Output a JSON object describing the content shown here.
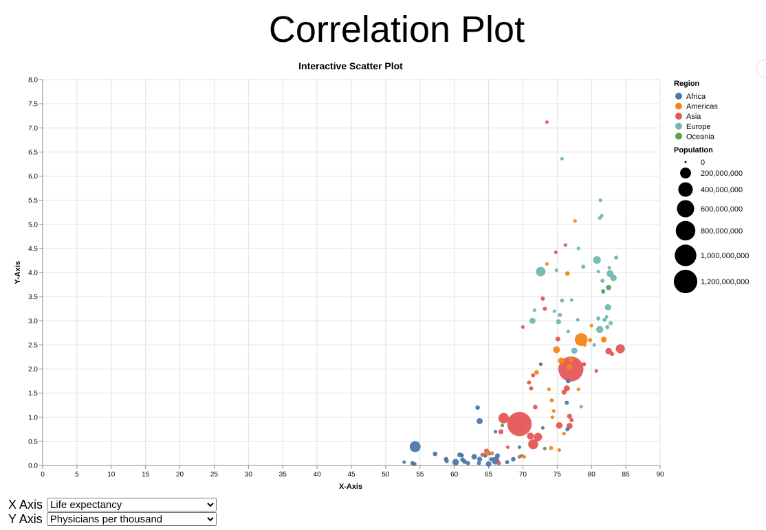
{
  "page": {
    "title": "Correlation Plot"
  },
  "controls": {
    "x_label": "X Axis",
    "y_label": "Y Axis",
    "x_selected": "Life expectancy",
    "y_selected": "Physicians per thousand"
  },
  "chart_data": {
    "type": "scatter",
    "title": "Interactive Scatter Plot",
    "xlabel": "X-Axis",
    "ylabel": "Y-Axis",
    "xlim": [
      0,
      90
    ],
    "ylim": [
      0,
      8
    ],
    "x_ticks": [
      0,
      5,
      10,
      15,
      20,
      25,
      30,
      35,
      40,
      45,
      50,
      55,
      60,
      65,
      70,
      75,
      80,
      85,
      90
    ],
    "y_ticks": [
      0,
      0.5,
      1,
      1.5,
      2,
      2.5,
      3,
      3.5,
      4,
      4.5,
      5,
      5.5,
      6,
      6.5,
      7,
      7.5,
      8
    ],
    "grid": true,
    "legend_position": "right",
    "color_legend": {
      "title": "Region",
      "entries": [
        {
          "name": "Africa",
          "color": "#4c78a8"
        },
        {
          "name": "Americas",
          "color": "#f58518"
        },
        {
          "name": "Asia",
          "color": "#e45756"
        },
        {
          "name": "Europe",
          "color": "#72b7b2"
        },
        {
          "name": "Oceania",
          "color": "#54a24b"
        }
      ]
    },
    "size_legend": {
      "title": "Population",
      "entries": [
        {
          "label": "0",
          "value": 0
        },
        {
          "label": "200,000,000",
          "value": 200000000
        },
        {
          "label": "400,000,000",
          "value": 400000000
        },
        {
          "label": "600,000,000",
          "value": 600000000
        },
        {
          "label": "800,000,000",
          "value": 800000000
        },
        {
          "label": "1,000,000,000",
          "value": 1000000000
        },
        {
          "label": "1,200,000,000",
          "value": 1200000000
        }
      ]
    },
    "points": [
      {
        "region": "Africa",
        "x": 54.3,
        "y": 0.39,
        "pop": 200000000
      },
      {
        "region": "Africa",
        "x": 53.9,
        "y": 0.05,
        "pop": 10000000
      },
      {
        "region": "Africa",
        "x": 54.2,
        "y": 0.03,
        "pop": 10000000
      },
      {
        "region": "Africa",
        "x": 52.7,
        "y": 0.07,
        "pop": 5000000
      },
      {
        "region": "Africa",
        "x": 57.2,
        "y": 0.24,
        "pop": 15000000
      },
      {
        "region": "Africa",
        "x": 58.8,
        "y": 0.13,
        "pop": 15000000
      },
      {
        "region": "Africa",
        "x": 58.9,
        "y": 0.09,
        "pop": 10000000
      },
      {
        "region": "Africa",
        "x": 60.2,
        "y": 0.07,
        "pop": 50000000
      },
      {
        "region": "Africa",
        "x": 60.8,
        "y": 0.22,
        "pop": 20000000
      },
      {
        "region": "Africa",
        "x": 61.2,
        "y": 0.12,
        "pop": 15000000
      },
      {
        "region": "Africa",
        "x": 61.5,
        "y": 0.08,
        "pop": 15000000
      },
      {
        "region": "Africa",
        "x": 61.1,
        "y": 0.21,
        "pop": 10000000
      },
      {
        "region": "Africa",
        "x": 62.0,
        "y": 0.05,
        "pop": 10000000
      },
      {
        "region": "Africa",
        "x": 62.9,
        "y": 0.18,
        "pop": 30000000
      },
      {
        "region": "Africa",
        "x": 63.4,
        "y": 1.2,
        "pop": 15000000
      },
      {
        "region": "Africa",
        "x": 63.7,
        "y": 0.92,
        "pop": 40000000
      },
      {
        "region": "Africa",
        "x": 63.7,
        "y": 0.13,
        "pop": 20000000
      },
      {
        "region": "Africa",
        "x": 63.6,
        "y": 0.05,
        "pop": 10000000
      },
      {
        "region": "Africa",
        "x": 64.5,
        "y": 0.21,
        "pop": 15000000
      },
      {
        "region": "Africa",
        "x": 65.0,
        "y": 0.03,
        "pop": 30000000
      },
      {
        "region": "Africa",
        "x": 65.1,
        "y": 0.25,
        "pop": 10000000
      },
      {
        "region": "Africa",
        "x": 65.4,
        "y": 0.13,
        "pop": 10000000
      },
      {
        "region": "Africa",
        "x": 66.0,
        "y": 0.1,
        "pop": 80000000
      },
      {
        "region": "Africa",
        "x": 66.3,
        "y": 0.2,
        "pop": 20000000
      },
      {
        "region": "Africa",
        "x": 66.0,
        "y": 0.7,
        "pop": 5000000
      },
      {
        "region": "Africa",
        "x": 67.7,
        "y": 0.07,
        "pop": 10000000
      },
      {
        "region": "Africa",
        "x": 68.6,
        "y": 0.13,
        "pop": 15000000
      },
      {
        "region": "Africa",
        "x": 69.5,
        "y": 0.38,
        "pop": 5000000
      },
      {
        "region": "Africa",
        "x": 72.6,
        "y": 2.1,
        "pop": 5000000
      },
      {
        "region": "Africa",
        "x": 72.9,
        "y": 0.78,
        "pop": 5000000
      },
      {
        "region": "Africa",
        "x": 76.4,
        "y": 1.3,
        "pop": 10000000
      },
      {
        "region": "Africa",
        "x": 76.6,
        "y": 1.75,
        "pop": 15000000
      },
      {
        "region": "Africa",
        "x": 76.5,
        "y": 0.75,
        "pop": 10000000
      },
      {
        "region": "Americas",
        "x": 64.8,
        "y": 0.25,
        "pop": 10000000
      },
      {
        "region": "Americas",
        "x": 65.5,
        "y": 0.25,
        "pop": 10000000
      },
      {
        "region": "Americas",
        "x": 70.2,
        "y": 0.18,
        "pop": 5000000
      },
      {
        "region": "Americas",
        "x": 72.0,
        "y": 1.93,
        "pop": 15000000
      },
      {
        "region": "Americas",
        "x": 73.5,
        "y": 4.18,
        "pop": 5000000
      },
      {
        "region": "Americas",
        "x": 73.8,
        "y": 1.58,
        "pop": 5000000
      },
      {
        "region": "Americas",
        "x": 74.2,
        "y": 1.35,
        "pop": 10000000
      },
      {
        "region": "Americas",
        "x": 74.3,
        "y": 1.0,
        "pop": 5000000
      },
      {
        "region": "Americas",
        "x": 74.5,
        "y": 1.13,
        "pop": 5000000
      },
      {
        "region": "Americas",
        "x": 74.1,
        "y": 0.36,
        "pop": 10000000
      },
      {
        "region": "Americas",
        "x": 74.9,
        "y": 2.4,
        "pop": 60000000
      },
      {
        "region": "Americas",
        "x": 75.3,
        "y": 0.32,
        "pop": 5000000
      },
      {
        "region": "Americas",
        "x": 75.6,
        "y": 2.17,
        "pop": 50000000
      },
      {
        "region": "Americas",
        "x": 76.0,
        "y": 0.66,
        "pop": 5000000
      },
      {
        "region": "Americas",
        "x": 76.5,
        "y": 3.98,
        "pop": 15000000
      },
      {
        "region": "Americas",
        "x": 76.8,
        "y": 2.05,
        "pop": 30000000
      },
      {
        "region": "Americas",
        "x": 77.0,
        "y": 2.2,
        "pop": 20000000
      },
      {
        "region": "Americas",
        "x": 77.6,
        "y": 5.07,
        "pop": 5000000
      },
      {
        "region": "Americas",
        "x": 78.1,
        "y": 1.58,
        "pop": 5000000
      },
      {
        "region": "Americas",
        "x": 78.5,
        "y": 2.61,
        "pop": 300000000
      },
      {
        "region": "Americas",
        "x": 79.0,
        "y": 2.5,
        "pop": 5000000
      },
      {
        "region": "Americas",
        "x": 79.8,
        "y": 2.6,
        "pop": 10000000
      },
      {
        "region": "Americas",
        "x": 80.0,
        "y": 2.9,
        "pop": 5000000
      },
      {
        "region": "Americas",
        "x": 81.8,
        "y": 2.61,
        "pop": 35000000
      },
      {
        "region": "Asia",
        "x": 64.1,
        "y": 0.22,
        "pop": 10000000
      },
      {
        "region": "Asia",
        "x": 64.7,
        "y": 0.3,
        "pop": 20000000
      },
      {
        "region": "Asia",
        "x": 66.5,
        "y": 0.05,
        "pop": 10000000
      },
      {
        "region": "Asia",
        "x": 66.8,
        "y": 0.7,
        "pop": 20000000
      },
      {
        "region": "Asia",
        "x": 67.2,
        "y": 0.98,
        "pop": 180000000
      },
      {
        "region": "Asia",
        "x": 67.8,
        "y": 0.38,
        "pop": 5000000
      },
      {
        "region": "Asia",
        "x": 69.5,
        "y": 0.86,
        "pop": 1300000000
      },
      {
        "region": "Asia",
        "x": 69.5,
        "y": 0.18,
        "pop": 5000000
      },
      {
        "region": "Asia",
        "x": 69.9,
        "y": 0.78,
        "pop": 5000000
      },
      {
        "region": "Asia",
        "x": 70.0,
        "y": 2.87,
        "pop": 5000000
      },
      {
        "region": "Asia",
        "x": 70.9,
        "y": 1.72,
        "pop": 10000000
      },
      {
        "region": "Asia",
        "x": 71.1,
        "y": 0.61,
        "pop": 60000000
      },
      {
        "region": "Asia",
        "x": 71.2,
        "y": 1.6,
        "pop": 10000000
      },
      {
        "region": "Asia",
        "x": 71.5,
        "y": 0.44,
        "pop": 160000000
      },
      {
        "region": "Asia",
        "x": 71.5,
        "y": 1.87,
        "pop": 10000000
      },
      {
        "region": "Asia",
        "x": 71.8,
        "y": 1.21,
        "pop": 15000000
      },
      {
        "region": "Asia",
        "x": 72.2,
        "y": 0.59,
        "pop": 100000000
      },
      {
        "region": "Asia",
        "x": 72.9,
        "y": 3.46,
        "pop": 10000000
      },
      {
        "region": "Asia",
        "x": 73.2,
        "y": 3.25,
        "pop": 10000000
      },
      {
        "region": "Asia",
        "x": 73.5,
        "y": 7.12,
        "pop": 5000000
      },
      {
        "region": "Asia",
        "x": 74.8,
        "y": 4.42,
        "pop": 5000000
      },
      {
        "region": "Asia",
        "x": 75.3,
        "y": 0.83,
        "pop": 50000000
      },
      {
        "region": "Asia",
        "x": 75.1,
        "y": 2.62,
        "pop": 20000000
      },
      {
        "region": "Asia",
        "x": 76.0,
        "y": 1.52,
        "pop": 20000000
      },
      {
        "region": "Asia",
        "x": 76.2,
        "y": 4.57,
        "pop": 5000000
      },
      {
        "region": "Asia",
        "x": 76.4,
        "y": 1.6,
        "pop": 40000000
      },
      {
        "region": "Asia",
        "x": 76.8,
        "y": 1.02,
        "pop": 20000000
      },
      {
        "region": "Asia",
        "x": 76.8,
        "y": 0.82,
        "pop": 40000000
      },
      {
        "region": "Asia",
        "x": 77.1,
        "y": 0.94,
        "pop": 10000000
      },
      {
        "region": "Asia",
        "x": 77.0,
        "y": 2.0,
        "pop": 1380000000
      },
      {
        "region": "Asia",
        "x": 78.9,
        "y": 2.1,
        "pop": 10000000
      },
      {
        "region": "Asia",
        "x": 80.7,
        "y": 1.96,
        "pop": 5000000
      },
      {
        "region": "Asia",
        "x": 82.5,
        "y": 2.37,
        "pop": 50000000
      },
      {
        "region": "Asia",
        "x": 83.0,
        "y": 2.31,
        "pop": 10000000
      },
      {
        "region": "Asia",
        "x": 84.2,
        "y": 2.42,
        "pop": 125000000
      },
      {
        "region": "Europe",
        "x": 71.4,
        "y": 3.0,
        "pop": 40000000
      },
      {
        "region": "Europe",
        "x": 71.7,
        "y": 3.22,
        "pop": 5000000
      },
      {
        "region": "Europe",
        "x": 72.6,
        "y": 4.02,
        "pop": 145000000
      },
      {
        "region": "Europe",
        "x": 74.6,
        "y": 3.2,
        "pop": 5000000
      },
      {
        "region": "Europe",
        "x": 74.9,
        "y": 4.05,
        "pop": 5000000
      },
      {
        "region": "Europe",
        "x": 75.2,
        "y": 2.98,
        "pop": 20000000
      },
      {
        "region": "Europe",
        "x": 75.4,
        "y": 3.12,
        "pop": 10000000
      },
      {
        "region": "Europe",
        "x": 75.7,
        "y": 3.42,
        "pop": 10000000
      },
      {
        "region": "Europe",
        "x": 75.7,
        "y": 6.36,
        "pop": 5000000
      },
      {
        "region": "Europe",
        "x": 76.6,
        "y": 2.78,
        "pop": 5000000
      },
      {
        "region": "Europe",
        "x": 77.1,
        "y": 3.43,
        "pop": 5000000
      },
      {
        "region": "Europe",
        "x": 77.5,
        "y": 2.38,
        "pop": 40000000
      },
      {
        "region": "Europe",
        "x": 78.0,
        "y": 3.02,
        "pop": 5000000
      },
      {
        "region": "Europe",
        "x": 78.1,
        "y": 4.5,
        "pop": 5000000
      },
      {
        "region": "Europe",
        "x": 78.5,
        "y": 1.22,
        "pop": 5000000
      },
      {
        "region": "Europe",
        "x": 78.8,
        "y": 4.12,
        "pop": 10000000
      },
      {
        "region": "Europe",
        "x": 80.4,
        "y": 2.5,
        "pop": 5000000
      },
      {
        "region": "Europe",
        "x": 80.8,
        "y": 4.26,
        "pop": 80000000
      },
      {
        "region": "Europe",
        "x": 81.0,
        "y": 3.05,
        "pop": 10000000
      },
      {
        "region": "Europe",
        "x": 81.0,
        "y": 4.02,
        "pop": 5000000
      },
      {
        "region": "Europe",
        "x": 81.3,
        "y": 5.5,
        "pop": 5000000
      },
      {
        "region": "Europe",
        "x": 81.2,
        "y": 5.13,
        "pop": 5000000
      },
      {
        "region": "Europe",
        "x": 81.2,
        "y": 2.82,
        "pop": 65000000
      },
      {
        "region": "Europe",
        "x": 81.5,
        "y": 5.18,
        "pop": 5000000
      },
      {
        "region": "Europe",
        "x": 81.6,
        "y": 3.83,
        "pop": 10000000
      },
      {
        "region": "Europe",
        "x": 81.7,
        "y": 3.6,
        "pop": 10000000
      },
      {
        "region": "Europe",
        "x": 81.9,
        "y": 3.02,
        "pop": 10000000
      },
      {
        "region": "Europe",
        "x": 82.2,
        "y": 3.08,
        "pop": 5000000
      },
      {
        "region": "Europe",
        "x": 82.3,
        "y": 2.87,
        "pop": 10000000
      },
      {
        "region": "Europe",
        "x": 82.4,
        "y": 3.28,
        "pop": 45000000
      },
      {
        "region": "Europe",
        "x": 82.6,
        "y": 4.1,
        "pop": 5000000
      },
      {
        "region": "Europe",
        "x": 82.7,
        "y": 3.98,
        "pop": 60000000
      },
      {
        "region": "Europe",
        "x": 82.8,
        "y": 2.95,
        "pop": 10000000
      },
      {
        "region": "Europe",
        "x": 83.2,
        "y": 3.89,
        "pop": 50000000
      },
      {
        "region": "Europe",
        "x": 83.6,
        "y": 4.31,
        "pop": 10000000
      },
      {
        "region": "Oceania",
        "x": 67.0,
        "y": 0.83,
        "pop": 5000000
      },
      {
        "region": "Oceania",
        "x": 69.8,
        "y": 0.2,
        "pop": 5000000
      },
      {
        "region": "Oceania",
        "x": 73.2,
        "y": 0.35,
        "pop": 5000000
      },
      {
        "region": "Oceania",
        "x": 81.7,
        "y": 3.62,
        "pop": 5000000
      },
      {
        "region": "Oceania",
        "x": 82.5,
        "y": 3.69,
        "pop": 25000000
      }
    ]
  }
}
